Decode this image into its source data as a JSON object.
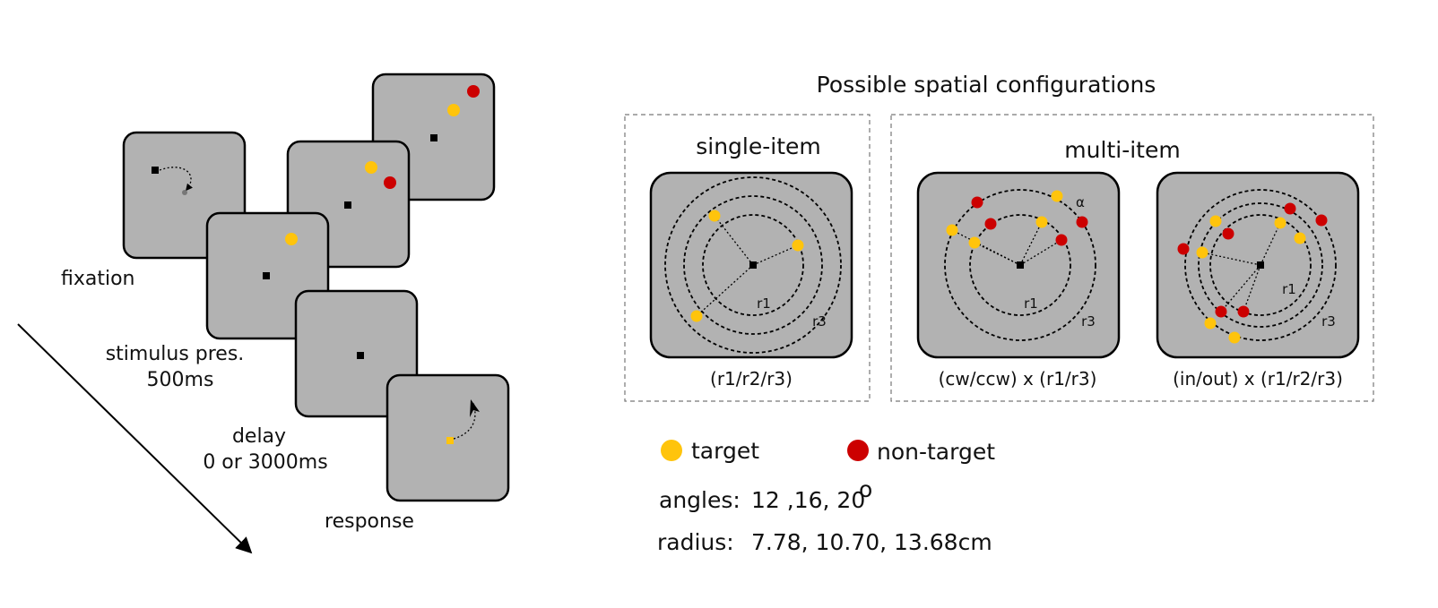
{
  "colors": {
    "target": "#FFC40C",
    "non_target": "#CC0000",
    "screen": "#b2b2b2"
  },
  "timeline": {
    "fixation": "fixation",
    "stimulus_line1": "stimulus pres.",
    "stimulus_line2": "500ms",
    "delay_line1": "delay",
    "delay_line2": "0 or 3000ms",
    "response": "response"
  },
  "configs": {
    "title": "Possible spatial configurations",
    "single_title": "single-item",
    "multi_title": "multi-item",
    "single_caption": "(r1/r2/r3)",
    "multi_cw_caption": "(cw/ccw) x (r1/r3)",
    "multi_inout_caption": "(in/out) x (r1/r2/r3)",
    "r1": "r1",
    "r3": "r3",
    "alpha": "α"
  },
  "legend": {
    "target": "target",
    "non_target": "non-target",
    "angles_label": "angles:",
    "angles_value": "12 ,16, 20",
    "angles_degree": "o",
    "radius_label": "radius:",
    "radius_value": "7.78, 10.70, 13.68cm"
  }
}
